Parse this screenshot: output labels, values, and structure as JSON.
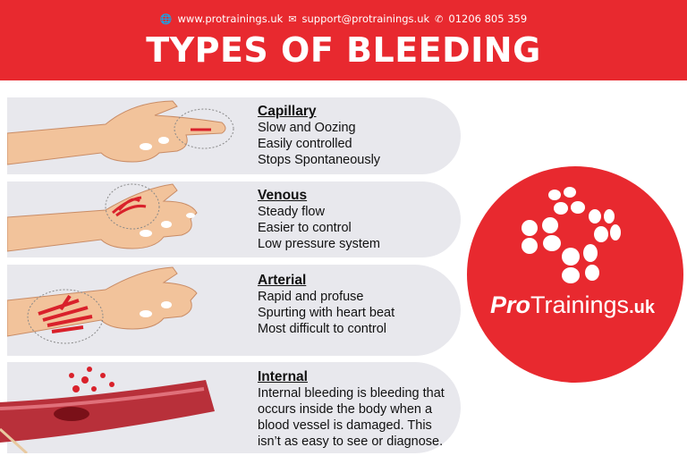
{
  "header": {
    "website": "www.protrainings.uk",
    "email": "support@protrainings.uk",
    "phone": "01206 805 359",
    "title": "TYPES OF BLEEDING",
    "icons": [
      "globe-icon",
      "envelope-icon",
      "phone-icon"
    ]
  },
  "types": [
    {
      "name": "Capillary",
      "lines": [
        "Slow and Oozing",
        "Easily controlled",
        "Stops Spontaneously"
      ]
    },
    {
      "name": "Venous",
      "lines": [
        "Steady flow",
        "Easier to control",
        "Low pressure system"
      ]
    },
    {
      "name": "Arterial",
      "lines": [
        "Rapid and profuse",
        "Spurting with heart beat",
        "Most difficult to control"
      ]
    },
    {
      "name": "Internal",
      "lines": [
        "Internal bleeding is bleeding that",
        "occurs inside the body when a",
        "blood vessel is damaged. This",
        "isn’t as easy to see or diagnose."
      ]
    }
  ],
  "logo": {
    "text": "ProTrainings.uk",
    "color": "#e8292f"
  },
  "colors": {
    "brand_red": "#e8292f",
    "card_bg": "#e8e8ed",
    "skin": "#f2c39b",
    "blood": "#d9212b"
  }
}
